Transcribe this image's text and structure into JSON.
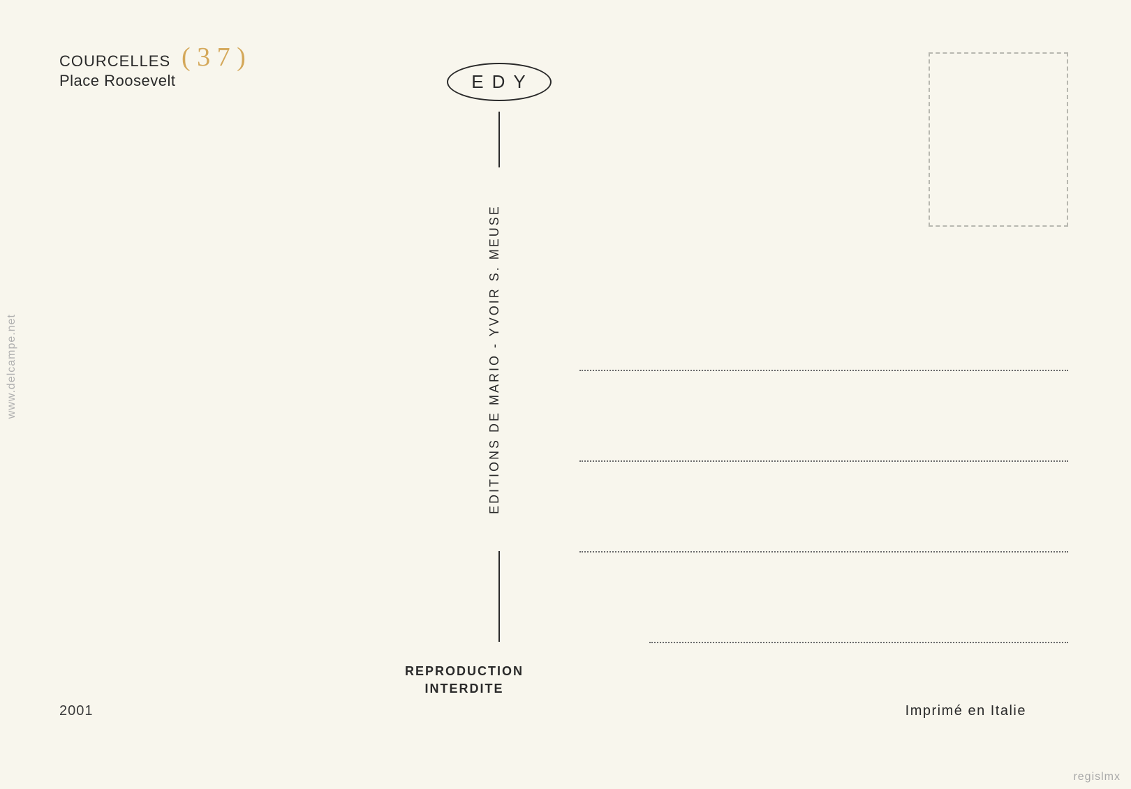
{
  "postcard": {
    "title_main": "COURCELLES",
    "title_sub": "Place Roosevelt",
    "handwritten_annotation": "( 3 7 )",
    "logo_text": "EDY",
    "publisher_vertical": "EDITIONS DE MARIO - YVOIR S. MEUSE",
    "reproduction_line1": "REPRODUCTION",
    "reproduction_line2": "INTERDITE",
    "serial_number": "2001",
    "imprint": "Imprimé en Italie"
  },
  "watermarks": {
    "left": "www.delcampe.net",
    "right": "regislmx"
  },
  "styling": {
    "background_color": "#f8f6ed",
    "text_color": "#2a2a2a",
    "handwritten_color": "#d4a85a",
    "stamp_border_color": "#b8b8b0",
    "watermark_color": "#b0b0b0",
    "dotted_line_color": "#6a6a6a",
    "title_fontsize": 22,
    "logo_fontsize": 26,
    "vertical_fontsize": 18,
    "reproduction_fontsize": 18,
    "serial_fontsize": 20,
    "imprint_fontsize": 20,
    "watermark_fontsize": 16,
    "handwritten_fontsize": 38,
    "stamp_box_width": 200,
    "stamp_box_height": 250,
    "address_line_width": 700,
    "address_line_count": 4
  }
}
